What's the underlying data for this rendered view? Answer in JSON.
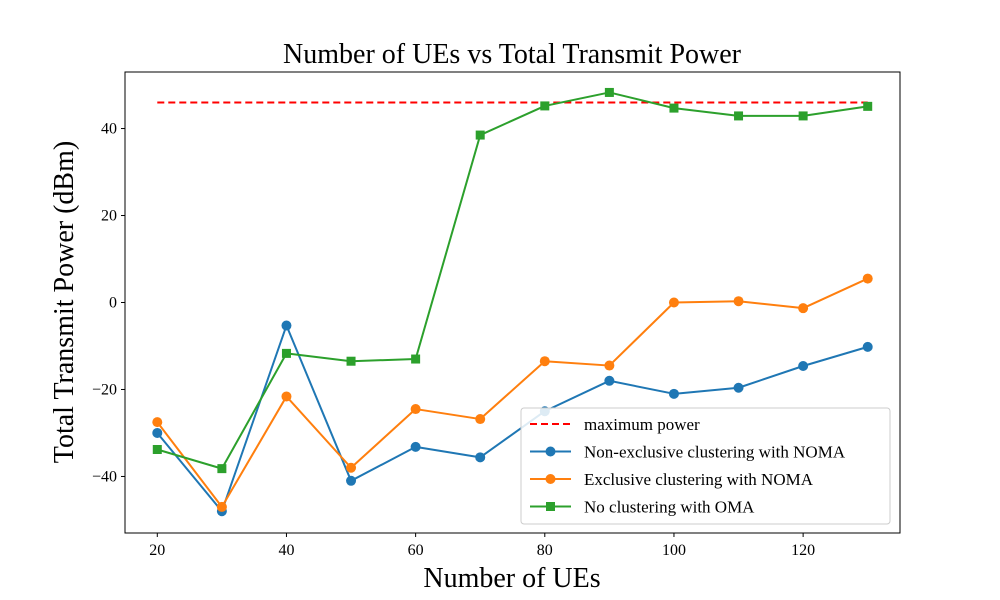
{
  "chart_data": {
    "type": "line",
    "title": "Number of UEs vs Total Transmit Power",
    "xlabel": "Number of UEs",
    "ylabel": "Total Transmit Power (dBm)",
    "xlim": [
      15,
      135
    ],
    "ylim": [
      -53,
      53
    ],
    "xticks": [
      20,
      40,
      60,
      80,
      100,
      120
    ],
    "yticks": [
      -40,
      -20,
      0,
      20,
      40
    ],
    "xtick_labels": [
      "20",
      "40",
      "60",
      "80",
      "100",
      "120"
    ],
    "ytick_labels": [
      "−40",
      "−20",
      "0",
      "20",
      "40"
    ],
    "grid": false,
    "legend_position": "lower-right",
    "x": [
      20,
      30,
      40,
      50,
      60,
      70,
      80,
      90,
      100,
      110,
      120,
      130
    ],
    "reference_line": {
      "name": "maximum power",
      "value": 46,
      "x_range": [
        20,
        130
      ],
      "color": "#ff0000",
      "style": "dashed"
    },
    "series": [
      {
        "name": "Non-exclusive clustering with NOMA",
        "color": "#1f77b4",
        "marker": "circle",
        "values": [
          -30,
          -48,
          -5.3,
          -41,
          -33.2,
          -35.6,
          -25,
          -18,
          -21,
          -19.6,
          -14.6,
          -10.2
        ]
      },
      {
        "name": "Exclusive clustering with NOMA",
        "color": "#ff7f0e",
        "marker": "circle",
        "values": [
          -27.5,
          -47,
          -21.6,
          -38,
          -24.5,
          -26.8,
          -13.5,
          -14.5,
          0,
          0.3,
          -1.3,
          5.5
        ]
      },
      {
        "name": "No clustering with OMA",
        "color": "#2ca02c",
        "marker": "square",
        "values": [
          -33.8,
          -38.2,
          -11.7,
          -13.5,
          -13,
          38.5,
          45.2,
          48.3,
          44.7,
          42.9,
          42.9,
          45.1
        ]
      }
    ]
  }
}
